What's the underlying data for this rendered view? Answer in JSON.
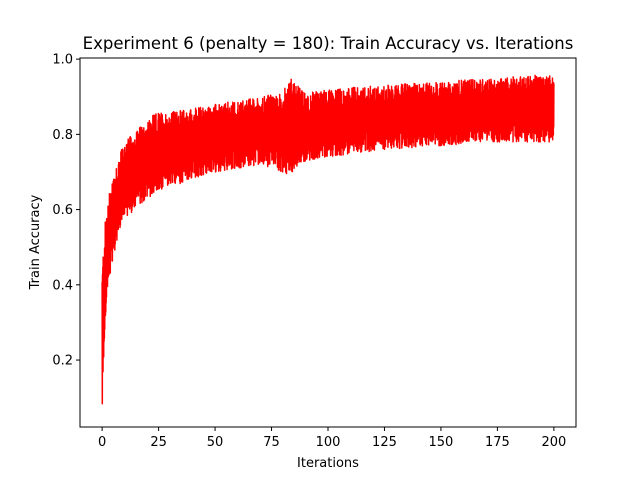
{
  "chart_data": {
    "type": "line",
    "title": "Experiment 6 (penalty = 180): Train Accuracy vs. Iterations",
    "xlabel": "Iterations",
    "ylabel": "Train Accuracy",
    "xlim": [
      -9.8,
      209.8
    ],
    "ylim": [
      0.022,
      1.003
    ],
    "x_ticks": [
      0,
      25,
      50,
      75,
      100,
      125,
      150,
      175,
      200
    ],
    "y_ticks": [
      0.2,
      0.4,
      0.6,
      0.8,
      1.0
    ],
    "grid": false,
    "legend": "none",
    "series": [
      {
        "color": "#ff0000",
        "style": "dense oscillating line",
        "x_range": [
          0,
          200
        ],
        "upper_envelope": [
          [
            0,
            0.45
          ],
          [
            1,
            0.55
          ],
          [
            2,
            0.6
          ],
          [
            4,
            0.68
          ],
          [
            6,
            0.72
          ],
          [
            8,
            0.75
          ],
          [
            10,
            0.78
          ],
          [
            15,
            0.81
          ],
          [
            20,
            0.84
          ],
          [
            25,
            0.86
          ],
          [
            30,
            0.86
          ],
          [
            40,
            0.87
          ],
          [
            50,
            0.88
          ],
          [
            60,
            0.89
          ],
          [
            70,
            0.9
          ],
          [
            80,
            0.91
          ],
          [
            83,
            0.95
          ],
          [
            90,
            0.91
          ],
          [
            100,
            0.92
          ],
          [
            125,
            0.93
          ],
          [
            150,
            0.94
          ],
          [
            175,
            0.95
          ],
          [
            200,
            0.96
          ]
        ],
        "lower_envelope": [
          [
            0,
            0.07
          ],
          [
            1,
            0.25
          ],
          [
            2,
            0.35
          ],
          [
            4,
            0.45
          ],
          [
            6,
            0.5
          ],
          [
            8,
            0.55
          ],
          [
            10,
            0.58
          ],
          [
            15,
            0.6
          ],
          [
            20,
            0.63
          ],
          [
            25,
            0.65
          ],
          [
            30,
            0.66
          ],
          [
            40,
            0.68
          ],
          [
            50,
            0.7
          ],
          [
            60,
            0.71
          ],
          [
            70,
            0.72
          ],
          [
            80,
            0.7
          ],
          [
            83,
            0.69
          ],
          [
            90,
            0.73
          ],
          [
            100,
            0.74
          ],
          [
            125,
            0.76
          ],
          [
            150,
            0.77
          ],
          [
            175,
            0.78
          ],
          [
            200,
            0.78
          ]
        ]
      }
    ]
  }
}
